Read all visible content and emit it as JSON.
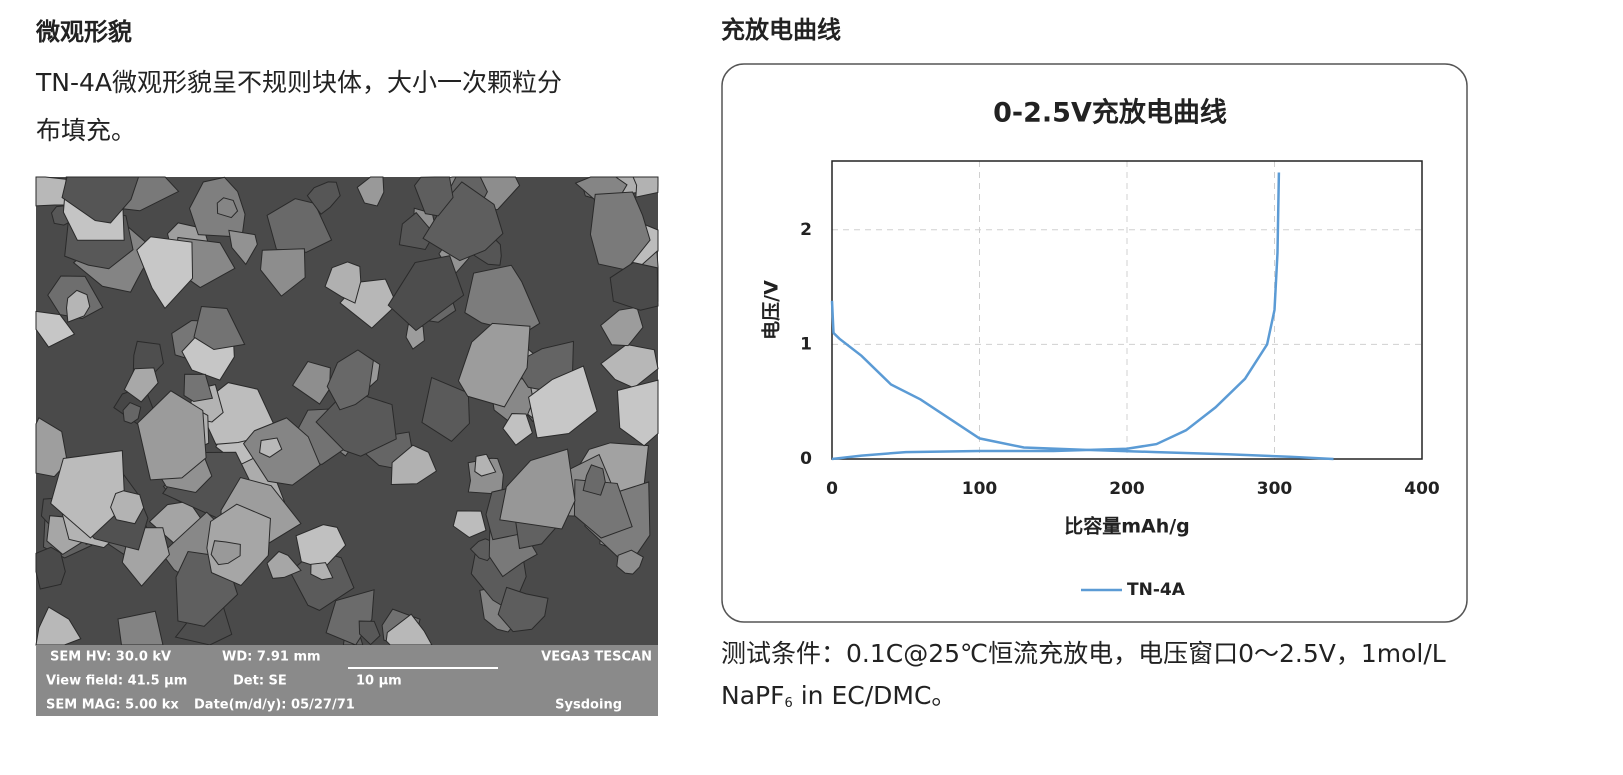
{
  "left": {
    "title": "微观形貌",
    "text_lines": [
      "TN-4A微观形貌呈不规则块体，大小一次颗粒分",
      "布填充。"
    ],
    "sem_info": [
      "SEM HV: 30.0 kV",
      "WD: 7.91 mm",
      "VEGA3 TESCAN",
      "View field: 41.5 μm",
      "Det: SE",
      "10 μm",
      "SEM MAG: 5.00 kx",
      "Date(m/d/y): 05/27/71",
      "Sysdoing"
    ]
  },
  "right": {
    "title": "充放电曲线",
    "caption_line1": "测试条件：0.1C@25℃恒流充放电，电压窗口0～2.5V，1mol/L",
    "caption_line2": [
      "NaPF",
      "6",
      " in EC/DMC。"
    ]
  },
  "chart_data": {
    "type": "line",
    "title": "0-2.5V充放电曲线",
    "x_label": "比容量mAh/g",
    "y_label": "电压/V",
    "xlim": [
      0,
      400
    ],
    "xticks": [
      0,
      100,
      200,
      300,
      400
    ],
    "ylim": [
      0,
      2.6
    ],
    "yticks": [
      0,
      1,
      2
    ],
    "grid": true,
    "legend": "bottom",
    "series": [
      {
        "name": "TN-4A",
        "color": "#5b9bd5",
        "x": [
          0,
          1,
          5,
          20,
          40,
          60,
          80,
          100,
          130,
          170,
          220,
          270,
          310,
          340,
          null,
          0,
          20,
          50,
          100,
          150,
          200,
          220,
          240,
          260,
          280,
          295,
          300,
          302,
          303
        ],
        "values": [
          1.38,
          1.1,
          1.05,
          0.9,
          0.65,
          0.52,
          0.35,
          0.18,
          0.1,
          0.08,
          0.06,
          0.04,
          0.02,
          0,
          null,
          0,
          0.03,
          0.06,
          0.07,
          0.07,
          0.09,
          0.13,
          0.25,
          0.45,
          0.7,
          1.0,
          1.3,
          1.8,
          2.5
        ]
      }
    ]
  }
}
